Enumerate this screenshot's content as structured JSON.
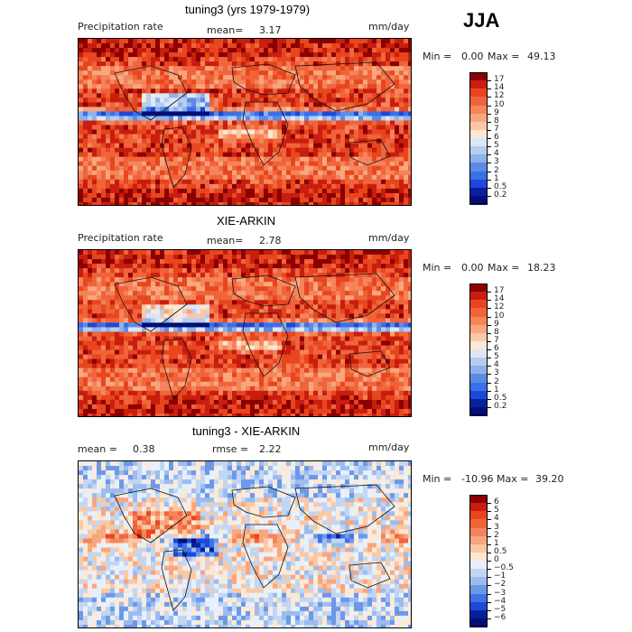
{
  "season": "JJA",
  "panels": [
    {
      "title": "tuning3 (yrs 1979-1979)",
      "left_label": "Precipitation rate",
      "mean_label": "mean=",
      "mean_value": "3.17",
      "units": "mm/day",
      "min_label": "Min =",
      "min_value": "0.00",
      "max_label": "Max =",
      "max_value": "49.13",
      "colorbar": [
        "17",
        "14",
        "12",
        "10",
        "9",
        "8",
        "7",
        "6",
        "5",
        "4",
        "3",
        "2",
        "1",
        "0.5",
        "0.2"
      ],
      "colors": [
        "#8b0000",
        "#c81e0f",
        "#e8461e",
        "#f0643c",
        "#f5845a",
        "#f8a67e",
        "#fbc8a4",
        "#fde8d4",
        "#dbe7f7",
        "#b6cdf0",
        "#8fb1ea",
        "#5a8ce6",
        "#3a6fe8",
        "#1d48d8",
        "#0a1f9c",
        "#000f7a"
      ],
      "field_type": "precip_model"
    },
    {
      "title": "XIE-ARKIN",
      "left_label": "Precipitation rate",
      "mean_label": "mean=",
      "mean_value": "2.78",
      "units": "mm/day",
      "min_label": "Min =",
      "min_value": "0.00",
      "max_label": "Max =",
      "max_value": "18.23",
      "colorbar": [
        "17",
        "14",
        "12",
        "10",
        "9",
        "8",
        "7",
        "6",
        "5",
        "4",
        "3",
        "2",
        "1",
        "0.5",
        "0.2"
      ],
      "colors": [
        "#8b0000",
        "#c81e0f",
        "#e8461e",
        "#f0643c",
        "#f5845a",
        "#f8a67e",
        "#fbc8a4",
        "#fde8d4",
        "#dbe7f7",
        "#b6cdf0",
        "#8fb1ea",
        "#5a8ce6",
        "#3a6fe8",
        "#1d48d8",
        "#0a1f9c",
        "#000f7a"
      ],
      "field_type": "precip_obs"
    },
    {
      "title": "tuning3 - XIE-ARKIN",
      "left_label": "mean =",
      "left_value": "0.38",
      "rmse_label": "rmse =",
      "rmse_value": "2.22",
      "units": "mm/day",
      "min_label": "Min =",
      "min_value": "-10.96",
      "max_label": "Max =",
      "max_value": "39.20",
      "colorbar": [
        "6",
        "5",
        "4",
        "3",
        "2",
        "1",
        "0.5",
        "0",
        "−0.5",
        "−1",
        "−2",
        "−3",
        "−4",
        "−5",
        "−6"
      ],
      "colors": [
        "#8b0000",
        "#c81e0f",
        "#e8461e",
        "#f0643c",
        "#f5845a",
        "#f8a67e",
        "#fbc8a4",
        "#fde8d4",
        "#e8f0fb",
        "#c2d6f3",
        "#9bbcee",
        "#6c98e8",
        "#3f72e4",
        "#1d48d8",
        "#0a1f9c",
        "#000f7a"
      ],
      "field_type": "diff"
    }
  ]
}
